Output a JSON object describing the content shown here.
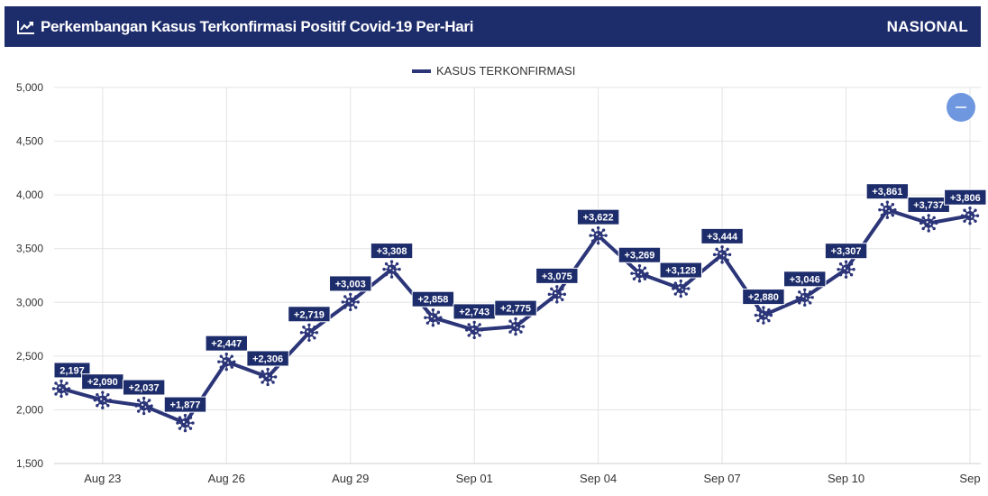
{
  "header": {
    "title": "Perkembangan Kasus Terkonfirmasi Positif Covid-19 Per-Hari",
    "scope": "NASIONAL",
    "icon": "line-chart-icon"
  },
  "zoom_button": {
    "icon": "minus-icon",
    "color": "#6f97e0"
  },
  "chart_data": {
    "type": "line",
    "legend": {
      "label": "KASUS TERKONFIRMASI",
      "placement": "top-center"
    },
    "series": [
      {
        "name": "KASUS TERKONFIRMASI",
        "color": "#2b3578",
        "marker": "virus-icon",
        "data_labels": [
          "2,197",
          "+2,090",
          "+2,037",
          "+1,877",
          "+2,447",
          "+2,306",
          "+2,719",
          "+3,003",
          "+3,308",
          "+2,858",
          "+2,743",
          "+2,775",
          "+3,075",
          "+3,622",
          "+3,269",
          "+3,128",
          "+3,444",
          "+2,880",
          "+3,046",
          "+3,307",
          "+3,861",
          "+3,737",
          "+3,806"
        ],
        "values": [
          2197,
          2090,
          2037,
          1877,
          2447,
          2306,
          2719,
          3003,
          3308,
          2858,
          2743,
          2775,
          3075,
          3622,
          3269,
          3128,
          3444,
          2880,
          3046,
          3307,
          3861,
          3737,
          3806
        ]
      }
    ],
    "x": [
      "2020-08-22",
      "2020-08-23",
      "2020-08-24",
      "2020-08-25",
      "2020-08-26",
      "2020-08-27",
      "2020-08-28",
      "2020-08-29",
      "2020-08-30",
      "2020-08-31",
      "2020-09-01",
      "2020-09-02",
      "2020-09-03",
      "2020-09-04",
      "2020-09-05",
      "2020-09-06",
      "2020-09-07",
      "2020-09-08",
      "2020-09-09",
      "2020-09-10",
      "2020-09-11",
      "2020-09-12",
      "2020-09-13"
    ],
    "x_tick_labels": [
      {
        "date": "2020-08-23",
        "label": "Aug 23"
      },
      {
        "date": "2020-08-26",
        "label": "Aug 26"
      },
      {
        "date": "2020-08-29",
        "label": "Aug 29"
      },
      {
        "date": "2020-09-01",
        "label": "Sep 01"
      },
      {
        "date": "2020-09-04",
        "label": "Sep 04"
      },
      {
        "date": "2020-09-07",
        "label": "Sep 07"
      },
      {
        "date": "2020-09-10",
        "label": "Sep 10"
      },
      {
        "date": "2020-09-13",
        "label": "Sep"
      }
    ],
    "y_ticks": [
      "5,000",
      "4,500",
      "4,000",
      "3,500",
      "3,000",
      "2,500",
      "2,000",
      "1,500"
    ],
    "y_tick_values": [
      5000,
      4500,
      4000,
      3500,
      3000,
      2500,
      2000,
      1500
    ],
    "ylim": [
      1500,
      5000
    ],
    "grid": true,
    "label_bg": "#1d2c6b"
  }
}
